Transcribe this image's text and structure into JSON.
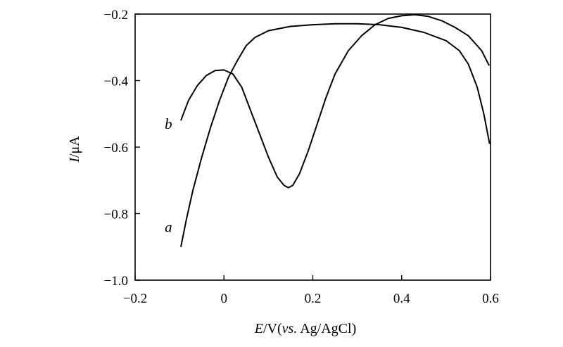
{
  "chart_data": {
    "type": "line",
    "title": "",
    "xlabel": {
      "var": "E",
      "rest": "/V(",
      "ref_italic": "vs.",
      "ref": " Ag/AgCl)"
    },
    "ylabel": {
      "var": "I",
      "unit": "/μA"
    },
    "xlim": [
      -0.2,
      0.6
    ],
    "ylim": [
      -1.0,
      -0.2
    ],
    "x_ticks": [
      -0.2,
      0,
      0.2,
      0.4,
      0.6
    ],
    "x_tick_labels": [
      "−0.2",
      "0",
      "0.2",
      "0.4",
      "0.6"
    ],
    "y_ticks": [
      -1.0,
      -0.8,
      -0.6,
      -0.4,
      -0.2
    ],
    "y_tick_labels": [
      "−1.0",
      "−0.8",
      "−0.6",
      "−0.4",
      "−0.2"
    ],
    "grid": false,
    "legend": "none",
    "line_color": "#000000",
    "series": [
      {
        "name": "a",
        "label_anchor": [
          -0.125,
          -0.855
        ],
        "points": [
          [
            -0.097,
            -0.9
          ],
          [
            -0.085,
            -0.82
          ],
          [
            -0.07,
            -0.73
          ],
          [
            -0.05,
            -0.63
          ],
          [
            -0.03,
            -0.54
          ],
          [
            -0.01,
            -0.46
          ],
          [
            0.01,
            -0.39
          ],
          [
            0.03,
            -0.34
          ],
          [
            0.05,
            -0.295
          ],
          [
            0.07,
            -0.27
          ],
          [
            0.1,
            -0.25
          ],
          [
            0.15,
            -0.237
          ],
          [
            0.2,
            -0.232
          ],
          [
            0.25,
            -0.229
          ],
          [
            0.3,
            -0.229
          ],
          [
            0.35,
            -0.232
          ],
          [
            0.4,
            -0.24
          ],
          [
            0.45,
            -0.255
          ],
          [
            0.5,
            -0.28
          ],
          [
            0.53,
            -0.31
          ],
          [
            0.55,
            -0.35
          ],
          [
            0.57,
            -0.42
          ],
          [
            0.585,
            -0.5
          ],
          [
            0.598,
            -0.59
          ]
        ]
      },
      {
        "name": "b",
        "label_anchor": [
          -0.125,
          -0.545
        ],
        "points": [
          [
            -0.097,
            -0.52
          ],
          [
            -0.08,
            -0.46
          ],
          [
            -0.06,
            -0.415
          ],
          [
            -0.04,
            -0.385
          ],
          [
            -0.02,
            -0.37
          ],
          [
            0.0,
            -0.368
          ],
          [
            0.02,
            -0.38
          ],
          [
            0.04,
            -0.42
          ],
          [
            0.06,
            -0.49
          ],
          [
            0.08,
            -0.56
          ],
          [
            0.1,
            -0.63
          ],
          [
            0.12,
            -0.69
          ],
          [
            0.135,
            -0.715
          ],
          [
            0.145,
            -0.722
          ],
          [
            0.155,
            -0.715
          ],
          [
            0.17,
            -0.68
          ],
          [
            0.19,
            -0.61
          ],
          [
            0.21,
            -0.53
          ],
          [
            0.23,
            -0.45
          ],
          [
            0.25,
            -0.38
          ],
          [
            0.28,
            -0.31
          ],
          [
            0.31,
            -0.265
          ],
          [
            0.34,
            -0.232
          ],
          [
            0.37,
            -0.213
          ],
          [
            0.4,
            -0.205
          ],
          [
            0.43,
            -0.202
          ],
          [
            0.46,
            -0.207
          ],
          [
            0.49,
            -0.22
          ],
          [
            0.52,
            -0.24
          ],
          [
            0.55,
            -0.265
          ],
          [
            0.58,
            -0.31
          ],
          [
            0.597,
            -0.355
          ]
        ]
      }
    ]
  }
}
